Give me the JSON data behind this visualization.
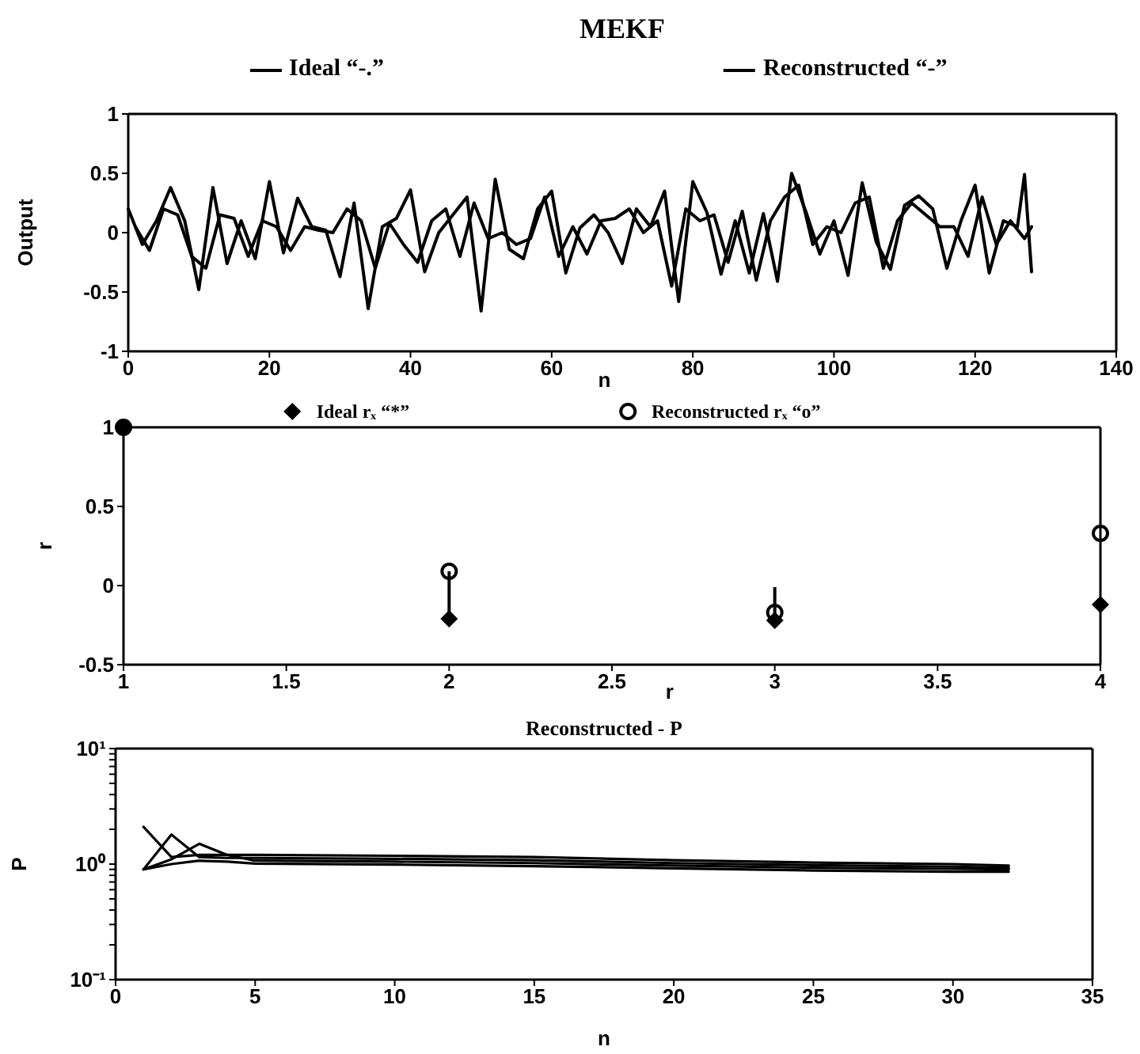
{
  "chart_data": [
    {
      "type": "line",
      "title": "MEKF",
      "xlabel": "n",
      "ylabel": "Output",
      "xlim": [
        0,
        140
      ],
      "xticks": [
        0,
        20,
        40,
        60,
        80,
        100,
        120,
        140
      ],
      "ylim": [
        -1,
        1
      ],
      "yticks": [
        -1,
        -0.5,
        0,
        0.5,
        1
      ],
      "legend": "top",
      "series": [
        {
          "name": "Ideal “-.”",
          "color": "#000000",
          "x": [
            0,
            2,
            4,
            6,
            8,
            10,
            12,
            14,
            16,
            18,
            20,
            22,
            24,
            26,
            28,
            30,
            32,
            34,
            36,
            38,
            40,
            42,
            44,
            46,
            48,
            50,
            52,
            54,
            56,
            58,
            60,
            62,
            64,
            66,
            68,
            70,
            72,
            74,
            76,
            78,
            80,
            82,
            84,
            86,
            88,
            90,
            92,
            94,
            96,
            98,
            100,
            102,
            104,
            106,
            108,
            110,
            112,
            114,
            116,
            118,
            120,
            122,
            124,
            126,
            127,
            128
          ],
          "values": [
            0.2,
            -0.1,
            0.1,
            0.38,
            0.1,
            -0.48,
            0.38,
            -0.26,
            0.1,
            -0.22,
            0.43,
            -0.17,
            0.29,
            0.05,
            0.02,
            -0.37,
            0.25,
            -0.64,
            0.05,
            0.12,
            0.36,
            -0.33,
            0,
            0.15,
            0.3,
            -0.66,
            0.45,
            -0.14,
            -0.22,
            0.2,
            0.35,
            -0.34,
            0.04,
            0.15,
            0,
            -0.26,
            0.2,
            0.05,
            0.35,
            -0.58,
            0.43,
            0.17,
            -0.35,
            0.1,
            -0.34,
            0.16,
            -0.41,
            0.5,
            0.18,
            -0.18,
            0.1,
            -0.36,
            0.42,
            -0.08,
            -0.31,
            0.23,
            0.31,
            0.2,
            -0.3,
            0.1,
            0.4,
            -0.34,
            0.1,
            0.05,
            0.49,
            -0.33
          ]
        },
        {
          "name": "Reconstructed “-”",
          "color": "#000000",
          "x": [
            1,
            3,
            5,
            7,
            9,
            11,
            13,
            15,
            17,
            19,
            21,
            23,
            25,
            27,
            29,
            31,
            33,
            35,
            37,
            39,
            41,
            43,
            45,
            47,
            49,
            51,
            53,
            55,
            57,
            59,
            61,
            63,
            65,
            67,
            69,
            71,
            73,
            75,
            77,
            79,
            81,
            83,
            85,
            87,
            89,
            91,
            93,
            95,
            97,
            99,
            101,
            103,
            105,
            107,
            109,
            111,
            113,
            115,
            117,
            119,
            121,
            123,
            125,
            127,
            128
          ],
          "values": [
            0.05,
            -0.15,
            0.2,
            0.15,
            -0.2,
            -0.3,
            0.15,
            0.12,
            -0.2,
            0.1,
            0.05,
            -0.15,
            0.05,
            0.02,
            0,
            0.2,
            0.1,
            -0.3,
            0.08,
            -0.1,
            -0.25,
            0.1,
            0.2,
            -0.2,
            0.25,
            -0.05,
            0,
            -0.1,
            -0.05,
            0.3,
            -0.2,
            0.05,
            -0.18,
            0.1,
            0.12,
            0.2,
            0,
            0.1,
            -0.45,
            0.2,
            0.1,
            0.15,
            -0.25,
            0.18,
            -0.4,
            0.1,
            0.3,
            0.4,
            -0.1,
            0.05,
            0,
            0.25,
            0.3,
            -0.3,
            0.1,
            0.25,
            0.15,
            0.05,
            0.05,
            -0.2,
            0.3,
            -0.1,
            0.1,
            -0.05,
            0.05
          ]
        }
      ]
    },
    {
      "type": "scatter",
      "xlabel": "r",
      "ylabel": "r",
      "x": [
        1,
        2,
        3,
        4
      ],
      "xlim": [
        1,
        4
      ],
      "xticks": [
        1,
        1.5,
        2,
        2.5,
        3,
        3.5,
        4
      ],
      "ylim": [
        -0.5,
        1
      ],
      "yticks": [
        -0.5,
        0,
        0.5,
        1
      ],
      "legend": "top",
      "series": [
        {
          "name": "Ideal rₓ “*”",
          "color": "#000000",
          "marker": "diamond",
          "values": [
            1,
            -0.21,
            -0.22,
            -0.12
          ],
          "errors": [
            null,
            [
              -0.21,
              0.09
            ],
            [
              -0.22,
              -0.01
            ],
            null
          ]
        },
        {
          "name": "Reconstructed rₓ “o”",
          "color": "#000000",
          "marker": "circle",
          "values": [
            1,
            0.09,
            -0.17,
            0.33
          ]
        }
      ]
    },
    {
      "type": "line",
      "title": "Reconstructed - P",
      "xlabel": "n",
      "ylabel": "P",
      "log": true,
      "x": [
        1,
        2,
        3,
        4,
        5,
        10,
        15,
        20,
        25,
        30,
        32
      ],
      "xlim": [
        0,
        35
      ],
      "xticks": [
        0,
        5,
        10,
        15,
        20,
        25,
        30,
        35
      ],
      "ylim": [
        0.1,
        10
      ],
      "yticks": [
        {
          "value": 0.1,
          "label": "10⁻¹"
        },
        {
          "value": 0.2,
          "label": null
        },
        {
          "value": 0.3,
          "label": null
        },
        {
          "value": 0.4,
          "label": null
        },
        {
          "value": 0.5,
          "label": null
        },
        {
          "value": 0.6,
          "label": null
        },
        {
          "value": 0.7,
          "label": null
        },
        {
          "value": 0.8,
          "label": null
        },
        {
          "value": 0.9,
          "label": null
        },
        {
          "value": 1,
          "label": "10⁰"
        },
        {
          "value": 2,
          "label": null
        },
        {
          "value": 3,
          "label": null
        },
        {
          "value": 4,
          "label": null
        },
        {
          "value": 5,
          "label": null
        },
        {
          "value": 6,
          "label": null
        },
        {
          "value": 7,
          "label": null
        },
        {
          "value": 8,
          "label": null
        },
        {
          "value": 9,
          "label": null
        },
        {
          "value": 10,
          "label": "10¹"
        }
      ],
      "series": [
        {
          "color": "#000000",
          "values": [
            2.1,
            1.15,
            1.2,
            1.2,
            1.2,
            1.18,
            1.15,
            1.08,
            1.03,
            1,
            0.97
          ]
        },
        {
          "color": "#000000",
          "values": [
            0.9,
            1.8,
            1.15,
            1.13,
            1.13,
            1.11,
            1.08,
            1.02,
            0.98,
            0.95,
            0.93
          ]
        },
        {
          "color": "#000000",
          "values": [
            0.9,
            1.1,
            1.5,
            1.2,
            1.07,
            1.05,
            1.02,
            0.97,
            0.93,
            0.91,
            0.9
          ]
        },
        {
          "color": "#000000",
          "values": [
            0.9,
            1,
            1.07,
            1.05,
            1.01,
            0.99,
            0.96,
            0.92,
            0.88,
            0.86,
            0.86
          ]
        }
      ]
    }
  ]
}
